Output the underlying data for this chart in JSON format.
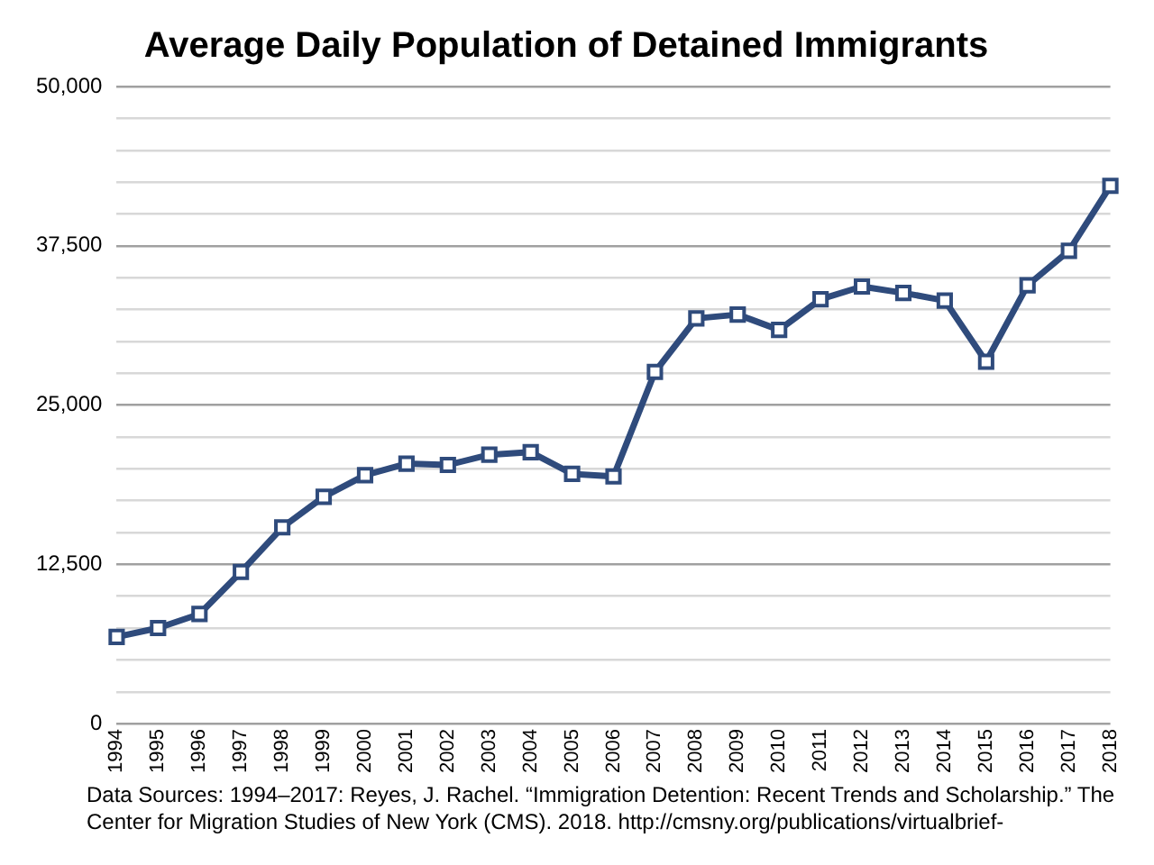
{
  "chart_data": {
    "type": "line",
    "title": "Average Daily Population of Detained Immigrants",
    "categories": [
      "1994",
      "1995",
      "1996",
      "1997",
      "1998",
      "1999",
      "2000",
      "2001",
      "2002",
      "2003",
      "2004",
      "2005",
      "2006",
      "2007",
      "2008",
      "2009",
      "2010",
      "2011",
      "2012",
      "2013",
      "2014",
      "2015",
      "2016",
      "2017",
      "2018"
    ],
    "series": [
      {
        "color": "#2f4b7c",
        "values": [
          6800,
          7500,
          8600,
          11900,
          15400,
          17800,
          19500,
          20400,
          20300,
          21100,
          21300,
          19600,
          19400,
          27600,
          31800,
          32100,
          30900,
          33300,
          34300,
          33800,
          33200,
          28400,
          34400,
          37100,
          42200
        ]
      }
    ],
    "ylim": [
      0,
      50000
    ],
    "yticks": [
      0,
      {
        "value": 2500,
        "label": null
      },
      {
        "value": 5000,
        "label": null
      },
      {
        "value": 7500,
        "label": null
      },
      {
        "value": 10000,
        "label": null
      },
      {
        "value": 12500,
        "label": "12,500"
      },
      {
        "value": 15000,
        "label": null
      },
      {
        "value": 17500,
        "label": null
      },
      {
        "value": 20000,
        "label": null
      },
      {
        "value": 22500,
        "label": null
      },
      {
        "value": 25000,
        "label": "25,000"
      },
      {
        "value": 27500,
        "label": null
      },
      {
        "value": 30000,
        "label": null
      },
      {
        "value": 32500,
        "label": null
      },
      {
        "value": 35000,
        "label": null
      },
      {
        "value": 37500,
        "label": "37,500"
      },
      {
        "value": 40000,
        "label": null
      },
      {
        "value": 42500,
        "label": null
      },
      {
        "value": 45000,
        "label": null
      },
      {
        "value": 47500,
        "label": null
      },
      {
        "value": 50000,
        "label": "50,000"
      }
    ],
    "grid": "y",
    "legend": false,
    "marker": "square",
    "line_style": "solid",
    "annotations": [
      "Data Sources: 1994–2017: Reyes, J. Rachel. “Immigration Detention: Recent Trends and Scholarship.” The Center for Migration Studies of New York (CMS). 2018. http://cmsny.org/publications/virtualbrief-"
    ]
  }
}
